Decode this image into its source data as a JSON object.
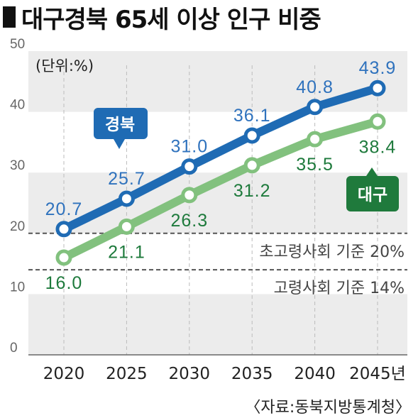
{
  "title": "대구경북 65세 이상 인구 비중",
  "unit": "(단위:%)",
  "source": "〈자료:동북지방통계청〉",
  "colors": {
    "gyeongbuk": "#1f6bb4",
    "gyeongbuk_label": "#2f72bd",
    "daegu": "#82c17e",
    "daegu_label": "#1e7a3c",
    "daegu_callout": "#1f7a3c",
    "band": "#ececec",
    "reference": "#555555"
  },
  "chart_data": {
    "type": "line",
    "title": "대구경북 65세 이상 인구 비중",
    "x": [
      "2020",
      "2025",
      "2030",
      "2035",
      "2040",
      "2045년"
    ],
    "ylim": [
      0,
      50
    ],
    "yticks": [
      "0",
      "10",
      "20",
      "30",
      "40",
      "50"
    ],
    "series": [
      {
        "name": "경북",
        "values": [
          20.7,
          25.7,
          31.0,
          36.1,
          40.8,
          43.9
        ],
        "labels": [
          "20.7",
          "25.7",
          "31.0",
          "36.1",
          "40.8",
          "43.9"
        ]
      },
      {
        "name": "대구",
        "values": [
          16.0,
          21.1,
          26.3,
          31.2,
          35.5,
          38.4
        ],
        "labels": [
          "16.0",
          "21.1",
          "26.3",
          "31.2",
          "35.5",
          "38.4"
        ]
      }
    ],
    "reference_lines": [
      {
        "value": 20,
        "label": "초고령사회 기준 20%"
      },
      {
        "value": 14,
        "label": "고령사회 기준 14%"
      }
    ],
    "legend": "callouts"
  }
}
